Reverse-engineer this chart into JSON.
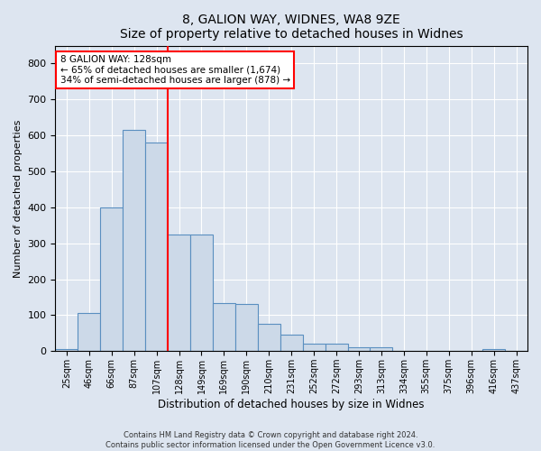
{
  "title1": "8, GALION WAY, WIDNES, WA8 9ZE",
  "title2": "Size of property relative to detached houses in Widnes",
  "xlabel": "Distribution of detached houses by size in Widnes",
  "ylabel": "Number of detached properties",
  "categories": [
    "25sqm",
    "46sqm",
    "66sqm",
    "87sqm",
    "107sqm",
    "128sqm",
    "149sqm",
    "169sqm",
    "190sqm",
    "210sqm",
    "231sqm",
    "252sqm",
    "272sqm",
    "293sqm",
    "313sqm",
    "334sqm",
    "355sqm",
    "375sqm",
    "396sqm",
    "416sqm",
    "437sqm"
  ],
  "values": [
    5,
    105,
    400,
    615,
    580,
    325,
    325,
    135,
    130,
    75,
    45,
    20,
    20,
    10,
    10,
    0,
    0,
    0,
    0,
    5,
    0
  ],
  "bar_color": "#ccd9e8",
  "bar_edge_color": "#5a8fc0",
  "vline_color": "red",
  "vline_index": 5,
  "ylim": [
    0,
    850
  ],
  "yticks": [
    0,
    100,
    200,
    300,
    400,
    500,
    600,
    700,
    800
  ],
  "annotation_text": "8 GALION WAY: 128sqm\n← 65% of detached houses are smaller (1,674)\n34% of semi-detached houses are larger (878) →",
  "annotation_box_color": "white",
  "annotation_box_edge": "red",
  "footer1": "Contains HM Land Registry data © Crown copyright and database right 2024.",
  "footer2": "Contains public sector information licensed under the Open Government Licence v3.0.",
  "background_color": "#dde5f0",
  "plot_bg_color": "#dde5f0"
}
